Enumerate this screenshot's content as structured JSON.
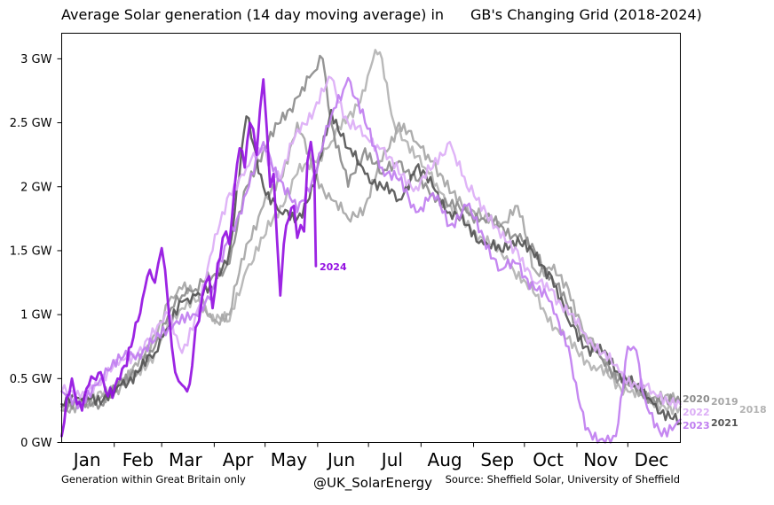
{
  "chart_data": {
    "type": "line",
    "title_left": "Average Solar generation (14 day moving average) in",
    "title_right": "GB's Changing Grid (2018-2024)",
    "ylim": [
      0,
      3.2
    ],
    "yticks": [
      0,
      0.5,
      1,
      1.5,
      2,
      2.5,
      3
    ],
    "yticklabels": [
      "0 GW",
      "0.5 GW",
      "1 GW",
      "1.5 GW",
      "2 GW",
      "2.5 GW",
      "3 GW"
    ],
    "xlim": [
      1,
      366
    ],
    "month_labels": [
      "Jan",
      "Feb",
      "Mar",
      "Apr",
      "May",
      "Jun",
      "Jul",
      "Aug",
      "Sep",
      "Oct",
      "Nov",
      "Dec"
    ],
    "month_centers": [
      16,
      46,
      74,
      105,
      135,
      166,
      196,
      227,
      258,
      288,
      319,
      349
    ],
    "month_boundaries": [
      32,
      60,
      91,
      121,
      152,
      182,
      213,
      244,
      274,
      305,
      335
    ],
    "series": [
      {
        "name": "2018",
        "color": "#b3b3b3",
        "width": 2.4,
        "x": [
          1,
          12,
          24,
          36,
          46,
          56,
          64,
          72,
          80,
          90,
          100,
          110,
          120,
          130,
          140,
          150,
          160,
          170,
          180,
          186,
          190,
          197,
          205,
          215,
          225,
          235,
          245,
          255,
          265,
          275,
          285,
          295,
          305,
          315,
          325,
          335,
          345,
          355,
          366
        ],
        "y": [
          0.3,
          0.35,
          0.4,
          0.45,
          0.55,
          0.7,
          0.95,
          1.05,
          1.1,
          1.0,
          0.95,
          1.35,
          1.6,
          1.85,
          2.1,
          2.2,
          2.35,
          2.55,
          2.75,
          3.07,
          3.0,
          2.5,
          2.35,
          2.15,
          1.95,
          1.75,
          1.65,
          1.55,
          1.4,
          1.25,
          1.05,
          0.85,
          0.72,
          0.6,
          0.5,
          0.4,
          0.35,
          0.3,
          0.28
        ]
      },
      {
        "name": "2019",
        "color": "#a6a6a6",
        "width": 2.4,
        "x": [
          1,
          12,
          24,
          36,
          46,
          56,
          64,
          72,
          80,
          90,
          100,
          110,
          120,
          130,
          140,
          150,
          160,
          170,
          180,
          190,
          200,
          210,
          220,
          230,
          240,
          250,
          260,
          270,
          280,
          290,
          300,
          310,
          320,
          330,
          340,
          350,
          366
        ],
        "y": [
          0.25,
          0.3,
          0.35,
          0.45,
          0.6,
          0.85,
          1.1,
          1.2,
          1.15,
          0.95,
          1.0,
          1.55,
          1.85,
          2.05,
          2.5,
          2.1,
          1.9,
          1.75,
          1.85,
          2.2,
          2.5,
          2.35,
          2.2,
          1.95,
          1.85,
          1.75,
          1.7,
          1.85,
          1.35,
          1.35,
          1.2,
          0.85,
          0.65,
          0.5,
          0.42,
          0.35,
          0.32
        ]
      },
      {
        "name": "2020",
        "color": "#8c8c8c",
        "width": 2.4,
        "x": [
          1,
          12,
          24,
          36,
          46,
          56,
          64,
          72,
          80,
          90,
          100,
          110,
          120,
          130,
          140,
          150,
          155,
          160,
          170,
          180,
          190,
          200,
          210,
          220,
          230,
          240,
          250,
          260,
          270,
          280,
          290,
          300,
          310,
          320,
          330,
          340,
          350,
          366
        ],
        "y": [
          0.28,
          0.3,
          0.3,
          0.5,
          0.55,
          0.75,
          1.0,
          1.15,
          1.2,
          1.3,
          1.4,
          2.0,
          2.3,
          2.5,
          2.7,
          2.9,
          3.0,
          2.5,
          2.0,
          2.3,
          2.1,
          2.2,
          2.05,
          1.95,
          1.85,
          1.8,
          1.75,
          1.7,
          1.6,
          1.5,
          1.3,
          1.05,
          0.8,
          0.65,
          0.5,
          0.4,
          0.35,
          0.3
        ]
      },
      {
        "name": "2021",
        "color": "#555555",
        "width": 2.4,
        "x": [
          1,
          12,
          24,
          36,
          46,
          56,
          64,
          72,
          80,
          90,
          100,
          110,
          120,
          130,
          140,
          150,
          160,
          170,
          180,
          190,
          200,
          210,
          220,
          230,
          240,
          250,
          260,
          270,
          280,
          290,
          300,
          310,
          320,
          330,
          340,
          350,
          366
        ],
        "y": [
          0.3,
          0.35,
          0.3,
          0.45,
          0.55,
          0.7,
          0.9,
          1.1,
          1.15,
          1.2,
          1.5,
          2.55,
          2.0,
          1.8,
          1.75,
          2.0,
          2.6,
          2.3,
          2.1,
          2.0,
          1.9,
          2.15,
          2.0,
          1.8,
          1.7,
          1.55,
          1.5,
          1.6,
          1.45,
          1.3,
          0.95,
          0.75,
          0.7,
          0.55,
          0.45,
          0.3,
          0.15
        ]
      },
      {
        "name": "2022",
        "color": "#dcaef6",
        "width": 2.4,
        "x": [
          1,
          12,
          24,
          36,
          46,
          56,
          64,
          72,
          80,
          90,
          100,
          110,
          120,
          130,
          140,
          150,
          160,
          170,
          180,
          190,
          200,
          210,
          220,
          230,
          240,
          250,
          260,
          270,
          280,
          290,
          300,
          310,
          320,
          330,
          340,
          350,
          366
        ],
        "y": [
          0.4,
          0.35,
          0.45,
          0.65,
          0.7,
          0.85,
          1.0,
          0.7,
          1.0,
          1.5,
          1.95,
          2.15,
          2.3,
          2.05,
          2.45,
          2.6,
          2.85,
          2.5,
          2.4,
          2.3,
          2.1,
          2.0,
          2.15,
          2.35,
          2.0,
          1.85,
          1.6,
          1.5,
          1.25,
          1.2,
          1.0,
          0.85,
          0.7,
          0.55,
          0.45,
          0.4,
          0.3
        ]
      },
      {
        "name": "2023",
        "color": "#c07ef0",
        "width": 2.4,
        "x": [
          1,
          12,
          24,
          36,
          46,
          56,
          64,
          72,
          80,
          90,
          100,
          110,
          120,
          130,
          140,
          150,
          160,
          170,
          180,
          190,
          200,
          210,
          220,
          230,
          240,
          250,
          260,
          270,
          280,
          290,
          300,
          303,
          310,
          320,
          328,
          335,
          340,
          345,
          355,
          366
        ],
        "y": [
          0.4,
          0.3,
          0.5,
          0.65,
          0.7,
          0.8,
          0.9,
          1.0,
          1.0,
          1.2,
          1.6,
          1.95,
          2.35,
          2.05,
          1.8,
          2.1,
          2.55,
          2.85,
          2.5,
          2.15,
          2.05,
          1.8,
          1.95,
          1.7,
          1.85,
          1.6,
          1.35,
          1.4,
          1.2,
          1.1,
          0.75,
          0.5,
          0.1,
          0.03,
          0.05,
          0.75,
          0.72,
          0.35,
          0.05,
          0.18
        ]
      },
      {
        "name": "2024",
        "color": "#9411e1",
        "width": 2.8,
        "x": [
          1,
          4,
          7,
          10,
          13,
          17,
          20,
          24,
          27,
          31,
          34,
          38,
          42,
          46,
          50,
          53,
          56,
          58,
          60,
          62,
          64,
          66,
          68,
          70,
          72,
          75,
          78,
          80,
          82,
          84,
          86,
          88,
          90,
          93,
          96,
          98,
          100,
          103,
          106,
          109,
          112,
          114,
          116,
          118,
          120,
          122,
          124,
          126,
          128,
          130,
          132,
          135,
          138,
          140,
          142,
          144,
          146,
          148,
          150,
          151
        ],
        "y": [
          0.05,
          0.35,
          0.5,
          0.3,
          0.25,
          0.45,
          0.5,
          0.55,
          0.4,
          0.35,
          0.5,
          0.6,
          0.75,
          0.95,
          1.2,
          1.35,
          1.25,
          1.4,
          1.52,
          1.35,
          1.05,
          0.75,
          0.55,
          0.48,
          0.45,
          0.4,
          0.6,
          0.9,
          0.95,
          1.15,
          1.25,
          1.3,
          1.05,
          1.4,
          1.6,
          1.65,
          1.55,
          2.0,
          2.3,
          2.15,
          2.5,
          2.45,
          2.25,
          2.6,
          2.84,
          2.45,
          2.0,
          2.1,
          1.6,
          1.15,
          1.55,
          1.75,
          1.85,
          1.6,
          1.7,
          1.65,
          2.2,
          2.35,
          2.15,
          1.38
        ]
      }
    ],
    "series_label_2024": "2024",
    "legend_right": [
      "2020",
      "2019",
      "2018",
      "2022",
      "2021",
      "2023"
    ],
    "footer_left": "Generation within Great Britain only",
    "footer_center": "@UK_SolarEnergy",
    "footer_right": "Source: Sheffield Solar, University of Sheffield"
  }
}
